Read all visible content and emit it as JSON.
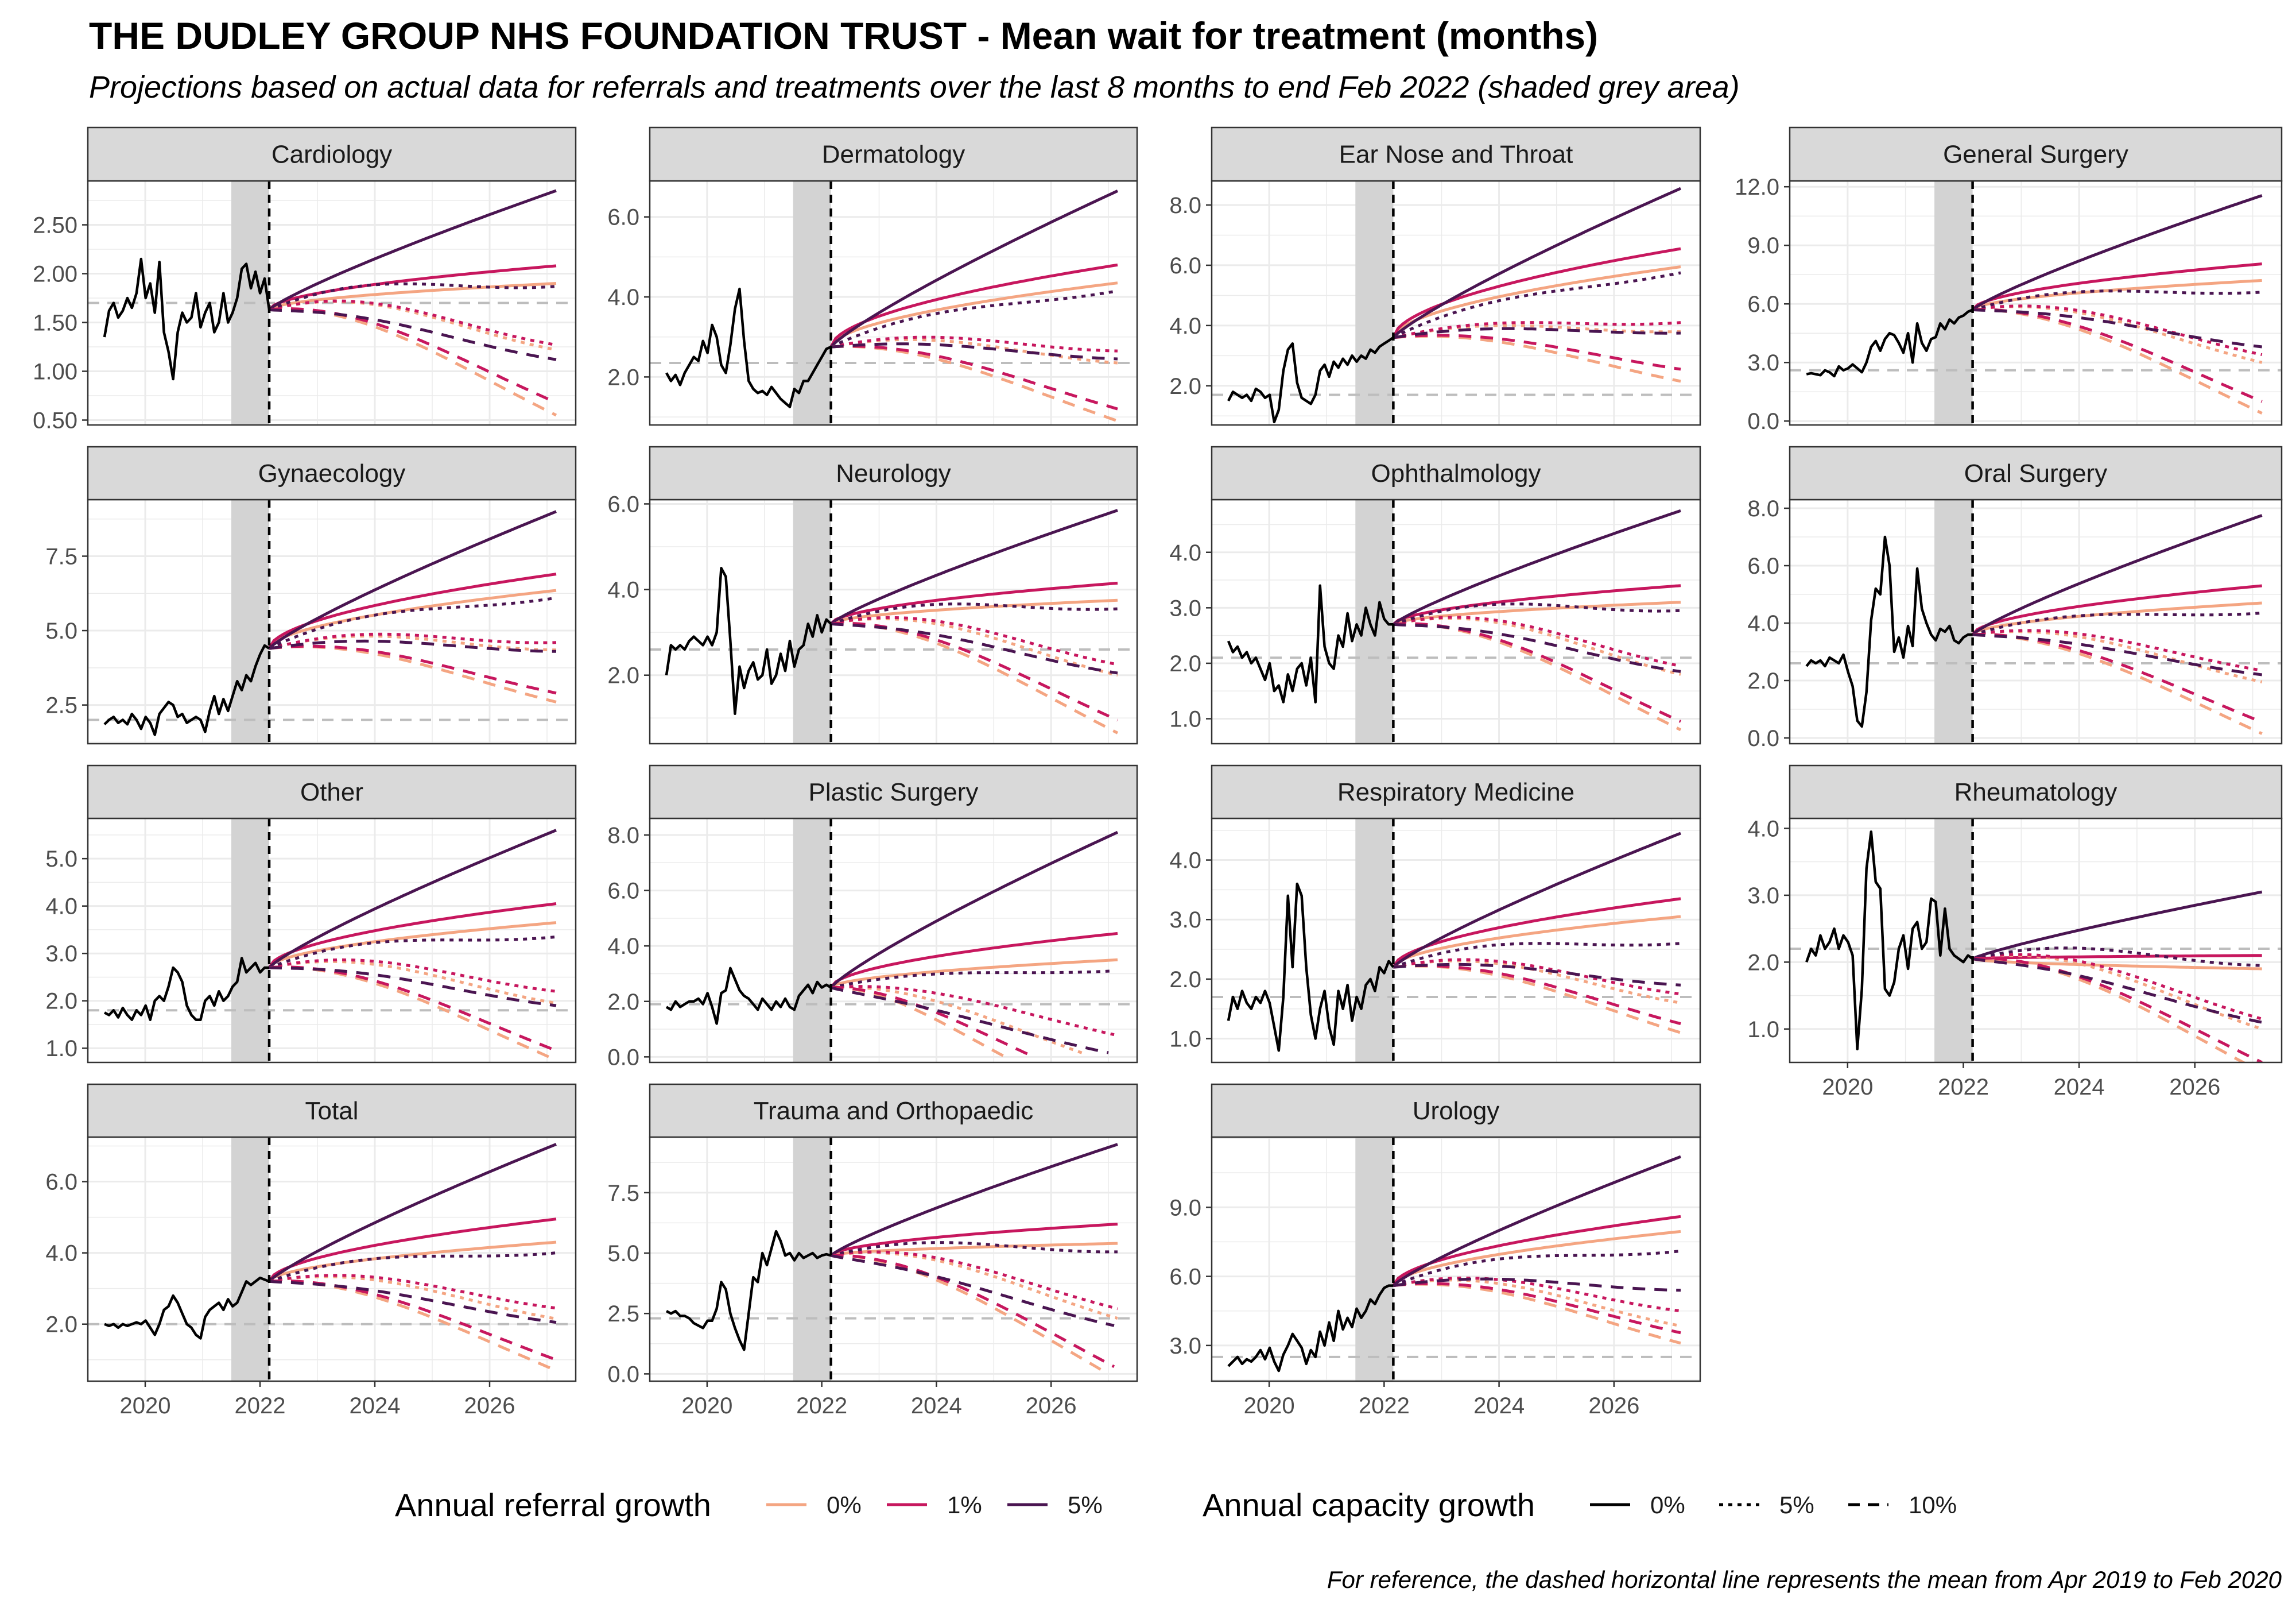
{
  "title": "THE DUDLEY GROUP NHS FOUNDATION TRUST - Mean wait for treatment (months)",
  "subtitle": "Projections based on actual data for referrals and treatments over the last 8 months to end Feb 2022 (shaded grey area)",
  "caption": "For reference, the dashed horizontal line represents the mean from Apr 2019 to Feb 2020",
  "legend": {
    "referral": {
      "title": "Annual referral growth",
      "items": [
        {
          "label": "0%",
          "color": "#F4A582"
        },
        {
          "label": "1%",
          "color": "#C7175E"
        },
        {
          "label": "5%",
          "color": "#4A1551"
        }
      ]
    },
    "capacity": {
      "title": "Annual capacity growth",
      "items": [
        {
          "label": "0%",
          "dash": "solid"
        },
        {
          "label": "5%",
          "dash": "dotted"
        },
        {
          "label": "10%",
          "dash": "dashed"
        }
      ]
    }
  },
  "colors": {
    "actual": "#000000",
    "reference": "#BDBDBD",
    "shade": "#D3D3D3",
    "strip_bg": "#D9D9D9",
    "grid": "#EBEBEB"
  },
  "chart_data": {
    "type": "line",
    "facets": "4 columns, free y scales, shared x axis (2019-2027)",
    "x_ticks": [
      "2020",
      "2022",
      "2024",
      "2026"
    ],
    "shaded_period": {
      "from": "2021-07",
      "to": "2022-02"
    },
    "projection_start": "2022-03",
    "projection_end": "2027-03",
    "scenario_order_note": "projection endpoints given as ref0/ref1/ref5 for capacity 0%, 5%, 10%",
    "panels": [
      {
        "name": "Cardiology",
        "yticks": [
          "0.50",
          "1.00",
          "1.50",
          "2.00",
          "2.50"
        ],
        "ylim": [
          0.45,
          2.95
        ],
        "baseline": 1.7,
        "start": 1.63,
        "actual": [
          1.35,
          1.62,
          1.7,
          1.55,
          1.62,
          1.75,
          1.65,
          1.8,
          2.15,
          1.75,
          1.9,
          1.6,
          2.12,
          1.4,
          1.2,
          0.92,
          1.4,
          1.6,
          1.5,
          1.55,
          1.8,
          1.45,
          1.6,
          1.7,
          1.4,
          1.5,
          1.8,
          1.5,
          1.6,
          1.75,
          2.05,
          2.1,
          1.85,
          2.02,
          1.8,
          1.95,
          1.63
        ],
        "end": {
          "cap0": [
            1.9,
            2.08,
            2.85
          ],
          "cap5": [
            1.22,
            1.27,
            1.87
          ],
          "cap10": [
            0.55,
            0.68,
            1.12
          ]
        }
      },
      {
        "name": "Dermatology",
        "yticks": [
          "2.0",
          "4.0",
          "6.0"
        ],
        "ylim": [
          0.8,
          6.9
        ],
        "baseline": 2.35,
        "start": 2.75,
        "actual": [
          2.1,
          1.9,
          2.05,
          1.8,
          2.1,
          2.3,
          2.5,
          2.4,
          2.9,
          2.6,
          3.3,
          3.0,
          2.3,
          2.1,
          2.8,
          3.7,
          4.2,
          2.9,
          1.9,
          1.7,
          1.6,
          1.65,
          1.55,
          1.75,
          1.6,
          1.45,
          1.35,
          1.25,
          1.7,
          1.6,
          1.9,
          1.9,
          2.1,
          2.3,
          2.5,
          2.7,
          2.75
        ],
        "end": {
          "cap0": [
            4.35,
            4.8,
            6.65
          ],
          "cap5": [
            2.35,
            2.65,
            4.15
          ],
          "cap10": [
            0.9,
            1.2,
            2.45
          ]
        }
      },
      {
        "name": "Ear Nose and Throat",
        "yticks": [
          "2.0",
          "4.0",
          "6.0",
          "8.0"
        ],
        "ylim": [
          0.7,
          8.8
        ],
        "baseline": 1.7,
        "start": 3.6,
        "actual": [
          1.5,
          1.8,
          1.7,
          1.6,
          1.7,
          1.5,
          1.9,
          1.8,
          1.6,
          1.7,
          0.8,
          1.2,
          2.5,
          3.2,
          3.4,
          2.1,
          1.6,
          1.5,
          1.4,
          1.7,
          2.5,
          2.7,
          2.3,
          2.8,
          2.6,
          2.9,
          2.7,
          3.0,
          2.8,
          3.0,
          2.9,
          3.2,
          3.1,
          3.3,
          3.4,
          3.5,
          3.6
        ],
        "end": {
          "cap0": [
            5.95,
            6.55,
            8.55
          ],
          "cap5": [
            3.8,
            4.1,
            5.75
          ],
          "cap10": [
            2.15,
            2.55,
            3.75
          ]
        }
      },
      {
        "name": "General Surgery",
        "yticks": [
          "0.0",
          "3.0",
          "6.0",
          "9.0",
          "12.0"
        ],
        "ylim": [
          -0.2,
          12.3
        ],
        "baseline": 2.6,
        "start": 5.7,
        "actual": [
          2.4,
          2.45,
          2.4,
          2.35,
          2.6,
          2.5,
          2.3,
          2.8,
          2.6,
          2.7,
          2.9,
          2.7,
          2.5,
          3.0,
          3.8,
          4.1,
          3.6,
          4.2,
          4.5,
          4.4,
          4.0,
          3.5,
          4.5,
          3.0,
          5.0,
          4.0,
          3.6,
          4.2,
          4.3,
          5.0,
          4.7,
          5.2,
          5.0,
          5.3,
          5.4,
          5.6,
          5.7
        ],
        "end": {
          "cap0": [
            7.2,
            8.05,
            11.55
          ],
          "cap5": [
            3.0,
            3.4,
            6.6
          ],
          "cap10": [
            0.4,
            1.0,
            3.8
          ]
        }
      },
      {
        "name": "Gynaecology",
        "yticks": [
          "2.5",
          "5.0",
          "7.5"
        ],
        "ylim": [
          1.2,
          9.4
        ],
        "baseline": 2.0,
        "start": 4.4,
        "actual": [
          1.85,
          2.0,
          2.1,
          1.9,
          2.0,
          1.85,
          2.2,
          2.0,
          1.7,
          2.1,
          1.9,
          1.5,
          2.2,
          2.4,
          2.6,
          2.5,
          2.1,
          2.2,
          1.9,
          2.0,
          2.1,
          2.0,
          1.6,
          2.3,
          2.8,
          2.2,
          2.7,
          2.3,
          2.8,
          3.3,
          3.0,
          3.5,
          3.3,
          3.8,
          4.2,
          4.5,
          4.4
        ],
        "end": {
          "cap0": [
            6.35,
            6.9,
            9.0
          ],
          "cap5": [
            4.35,
            4.6,
            6.1
          ],
          "cap10": [
            2.6,
            2.9,
            4.3
          ]
        }
      },
      {
        "name": "Neurology",
        "yticks": [
          "2.0",
          "4.0",
          "6.0"
        ],
        "ylim": [
          0.4,
          6.1
        ],
        "baseline": 2.6,
        "start": 3.2,
        "actual": [
          2.0,
          2.7,
          2.6,
          2.7,
          2.6,
          2.8,
          2.9,
          2.8,
          2.7,
          2.9,
          2.7,
          3.0,
          4.5,
          4.3,
          2.8,
          1.1,
          2.2,
          1.7,
          2.1,
          2.3,
          1.9,
          2.0,
          2.6,
          1.8,
          2.0,
          2.5,
          2.1,
          2.8,
          2.2,
          2.6,
          2.7,
          3.2,
          2.9,
          3.4,
          3.0,
          3.3,
          3.2
        ],
        "end": {
          "cap0": [
            3.75,
            4.15,
            5.85
          ],
          "cap5": [
            2.0,
            2.25,
            3.55
          ],
          "cap10": [
            0.65,
            0.95,
            2.05
          ]
        }
      },
      {
        "name": "Ophthalmology",
        "yticks": [
          "1.0",
          "2.0",
          "3.0",
          "4.0"
        ],
        "ylim": [
          0.55,
          4.95
        ],
        "baseline": 2.1,
        "start": 2.7,
        "actual": [
          2.4,
          2.2,
          2.3,
          2.1,
          2.2,
          2.0,
          2.1,
          1.9,
          1.7,
          2.0,
          1.5,
          1.6,
          1.3,
          1.8,
          1.5,
          1.9,
          2.0,
          1.6,
          2.1,
          1.3,
          3.4,
          2.3,
          2.0,
          1.9,
          2.5,
          2.3,
          2.9,
          2.4,
          2.7,
          2.5,
          3.0,
          2.7,
          2.5,
          3.1,
          2.8,
          2.7,
          2.7
        ],
        "end": {
          "cap0": [
            3.1,
            3.4,
            4.75
          ],
          "cap5": [
            1.8,
            1.95,
            2.95
          ],
          "cap10": [
            0.8,
            0.95,
            1.85
          ]
        }
      },
      {
        "name": "Oral Surgery",
        "yticks": [
          "0.0",
          "2.0",
          "4.0",
          "6.0",
          "8.0"
        ],
        "ylim": [
          -0.2,
          8.3
        ],
        "baseline": 2.6,
        "start": 3.6,
        "actual": [
          2.5,
          2.7,
          2.6,
          2.7,
          2.5,
          2.8,
          2.7,
          2.6,
          2.9,
          2.3,
          1.8,
          0.6,
          0.4,
          1.6,
          4.1,
          5.2,
          5.0,
          7.0,
          6.0,
          3.0,
          3.5,
          2.8,
          3.9,
          3.2,
          5.9,
          4.5,
          4.0,
          3.6,
          3.4,
          3.8,
          3.7,
          3.9,
          3.4,
          3.3,
          3.5,
          3.6,
          3.6
        ],
        "end": {
          "cap0": [
            4.7,
            5.3,
            7.75
          ],
          "cap5": [
            1.95,
            2.35,
            4.35
          ],
          "cap10": [
            0.15,
            0.55,
            2.2
          ]
        }
      },
      {
        "name": "Other",
        "yticks": [
          "1.0",
          "2.0",
          "3.0",
          "4.0",
          "5.0"
        ],
        "ylim": [
          0.7,
          5.85
        ],
        "baseline": 1.8,
        "start": 2.7,
        "actual": [
          1.75,
          1.7,
          1.8,
          1.65,
          1.85,
          1.7,
          1.6,
          1.8,
          1.7,
          1.9,
          1.6,
          2.0,
          2.1,
          2.0,
          2.3,
          2.7,
          2.6,
          2.4,
          1.9,
          1.7,
          1.6,
          1.6,
          2.0,
          2.1,
          1.9,
          2.2,
          2.0,
          2.1,
          2.3,
          2.4,
          2.9,
          2.6,
          2.7,
          2.8,
          2.6,
          2.7,
          2.7
        ],
        "end": {
          "cap0": [
            3.65,
            4.05,
            5.6
          ],
          "cap5": [
            1.95,
            2.2,
            3.35
          ],
          "cap10": [
            0.75,
            0.95,
            1.9
          ]
        }
      },
      {
        "name": "Plastic Surgery",
        "yticks": [
          "0.0",
          "2.0",
          "4.0",
          "6.0",
          "8.0"
        ],
        "ylim": [
          -0.2,
          8.6
        ],
        "baseline": 1.9,
        "start": 2.5,
        "actual": [
          1.8,
          1.7,
          2.0,
          1.8,
          1.9,
          2.0,
          2.0,
          2.1,
          1.9,
          2.3,
          1.8,
          1.2,
          2.3,
          2.4,
          3.2,
          2.8,
          2.4,
          2.2,
          2.1,
          1.9,
          1.7,
          2.1,
          1.9,
          1.7,
          2.0,
          1.8,
          2.1,
          1.8,
          1.7,
          2.2,
          2.4,
          2.6,
          2.3,
          2.7,
          2.5,
          2.6,
          2.5
        ],
        "end": {
          "cap0": [
            3.5,
            4.45,
            8.1
          ],
          "cap5": [
            0.1,
            0.8,
            3.1
          ],
          "cap10": [
            0.0,
            0.0,
            0.15
          ],
          "cap10_hit_zero_year": [
            2025.2,
            2025.7,
            2027.0
          ],
          "cap5_hit_zero_year": [
            2026.6,
            2027.1,
            2027.1
          ]
        }
      },
      {
        "name": "Respiratory Medicine",
        "yticks": [
          "1.0",
          "2.0",
          "3.0",
          "4.0"
        ],
        "ylim": [
          0.6,
          4.7
        ],
        "baseline": 1.7,
        "start": 2.2,
        "actual": [
          1.3,
          1.7,
          1.5,
          1.8,
          1.6,
          1.5,
          1.7,
          1.6,
          1.8,
          1.6,
          1.2,
          0.8,
          1.7,
          3.4,
          2.2,
          3.6,
          3.4,
          2.2,
          1.4,
          1.0,
          1.5,
          1.8,
          1.2,
          0.9,
          1.8,
          1.5,
          1.9,
          1.3,
          1.7,
          1.5,
          1.9,
          2.0,
          1.8,
          2.2,
          2.1,
          2.3,
          2.2
        ],
        "end": {
          "cap0": [
            3.05,
            3.35,
            4.45
          ],
          "cap5": [
            1.6,
            1.75,
            2.6
          ],
          "cap10": [
            1.1,
            1.25,
            1.9
          ]
        }
      },
      {
        "name": "Rheumatology",
        "yticks": [
          "1.0",
          "2.0",
          "3.0",
          "4.0"
        ],
        "ylim": [
          0.5,
          4.15
        ],
        "baseline": 2.2,
        "start": 2.05,
        "actual": [
          2.0,
          2.2,
          2.1,
          2.4,
          2.2,
          2.3,
          2.5,
          2.2,
          2.4,
          2.3,
          2.1,
          0.7,
          1.6,
          3.4,
          3.95,
          3.2,
          3.1,
          1.6,
          1.5,
          1.7,
          2.2,
          2.4,
          1.9,
          2.5,
          2.6,
          2.2,
          2.3,
          2.95,
          2.9,
          2.1,
          2.8,
          2.2,
          2.1,
          2.05,
          2.0,
          2.1,
          2.05
        ],
        "end": {
          "cap0": [
            1.9,
            2.1,
            3.05
          ],
          "cap5": [
            1.0,
            1.15,
            1.95
          ],
          "cap10": [
            0.35,
            0.5,
            1.1
          ]
        }
      },
      {
        "name": "Total",
        "yticks": [
          "2.0",
          "4.0",
          "6.0"
        ],
        "ylim": [
          0.4,
          7.25
        ],
        "baseline": 2.0,
        "start": 3.2,
        "actual": [
          2.0,
          1.95,
          2.0,
          1.9,
          2.0,
          1.95,
          2.0,
          2.05,
          2.0,
          2.1,
          1.9,
          1.7,
          2.0,
          2.4,
          2.5,
          2.8,
          2.6,
          2.3,
          2.0,
          1.9,
          1.7,
          1.6,
          2.2,
          2.4,
          2.5,
          2.6,
          2.4,
          2.7,
          2.5,
          2.6,
          2.9,
          3.2,
          3.1,
          3.2,
          3.3,
          3.25,
          3.2
        ],
        "end": {
          "cap0": [
            4.3,
            4.95,
            7.05
          ],
          "cap5": [
            2.15,
            2.45,
            4.0
          ],
          "cap10": [
            0.7,
            1.0,
            2.05
          ]
        }
      },
      {
        "name": "Trauma and Orthopaedic",
        "yticks": [
          "0.0",
          "2.5",
          "5.0",
          "7.5"
        ],
        "ylim": [
          -0.3,
          9.8
        ],
        "baseline": 2.3,
        "start": 4.9,
        "actual": [
          2.6,
          2.5,
          2.6,
          2.4,
          2.4,
          2.3,
          2.1,
          2.0,
          1.9,
          2.2,
          2.2,
          2.7,
          3.8,
          3.5,
          2.5,
          1.9,
          1.4,
          1.0,
          2.5,
          4.0,
          3.8,
          5.0,
          4.5,
          5.2,
          5.9,
          5.5,
          4.9,
          5.0,
          4.7,
          5.0,
          4.8,
          4.9,
          5.0,
          4.8,
          4.9,
          4.95,
          4.9
        ],
        "end": {
          "cap0": [
            5.4,
            6.2,
            9.5
          ],
          "cap5": [
            2.3,
            2.7,
            5.05
          ],
          "cap10": [
            0.0,
            0.3,
            2.0
          ],
          "cap10_hit_zero_year": [
            2027.0,
            2027.1,
            2027.1
          ]
        }
      },
      {
        "name": "Urology",
        "yticks": [
          "3.0",
          "6.0",
          "9.0"
        ],
        "ylim": [
          1.45,
          12.05
        ],
        "baseline": 2.5,
        "start": 5.6,
        "actual": [
          2.1,
          2.3,
          2.5,
          2.2,
          2.4,
          2.3,
          2.5,
          2.8,
          2.4,
          2.9,
          2.3,
          1.9,
          2.6,
          3.0,
          3.5,
          3.2,
          2.9,
          2.2,
          2.8,
          2.5,
          3.6,
          3.0,
          4.0,
          3.2,
          4.5,
          3.7,
          4.2,
          3.8,
          4.6,
          4.2,
          4.5,
          5.0,
          4.8,
          5.2,
          5.5,
          5.6,
          5.6
        ],
        "end": {
          "cap0": [
            7.95,
            8.6,
            11.2
          ],
          "cap5": [
            3.85,
            4.5,
            7.1
          ],
          "cap10": [
            3.1,
            3.55,
            5.4
          ]
        }
      }
    ]
  }
}
